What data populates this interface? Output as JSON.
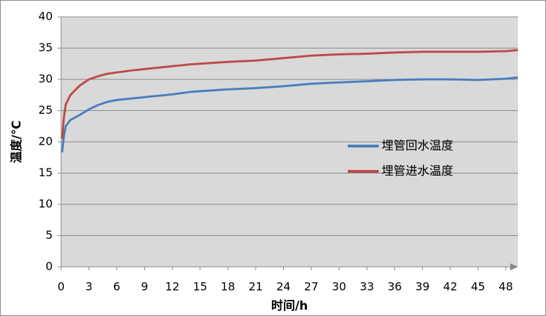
{
  "chart_data": {
    "type": "line",
    "x_label": "时间/h",
    "y_label": "温度/℃",
    "xlim": [
      0,
      49.3
    ],
    "xticks": [
      0,
      3,
      6,
      9,
      12,
      15,
      18,
      21,
      24,
      27,
      30,
      33,
      36,
      39,
      42,
      45,
      48
    ],
    "ylim": [
      0,
      40
    ],
    "yticks": [
      0,
      5,
      10,
      15,
      20,
      25,
      30,
      35,
      40
    ],
    "grid": true,
    "legend": "center-right",
    "x": [
      0.1,
      0.3,
      0.5,
      1,
      2,
      3,
      4,
      5,
      6,
      8,
      10,
      12,
      14,
      16,
      18,
      21,
      24,
      27,
      30,
      33,
      36,
      39,
      42,
      45,
      48,
      49.3
    ],
    "series": [
      {
        "name": "埋管回水温度",
        "color": "#4a7ebb",
        "values": [
          18.3,
          21,
          22.5,
          23.5,
          24.3,
          25.2,
          25.9,
          26.4,
          26.7,
          27.0,
          27.3,
          27.6,
          28.0,
          28.2,
          28.4,
          28.6,
          28.9,
          29.3,
          29.5,
          29.7,
          29.9,
          30.0,
          30.0,
          29.9,
          30.1,
          30.3
        ]
      },
      {
        "name": "埋管进水温度",
        "color": "#be4b48",
        "values": [
          20.5,
          24,
          26,
          27.5,
          29,
          30,
          30.5,
          30.9,
          31.1,
          31.5,
          31.8,
          32.1,
          32.4,
          32.6,
          32.8,
          33.0,
          33.4,
          33.8,
          34.0,
          34.1,
          34.3,
          34.4,
          34.4,
          34.4,
          34.5,
          34.7
        ]
      }
    ]
  }
}
